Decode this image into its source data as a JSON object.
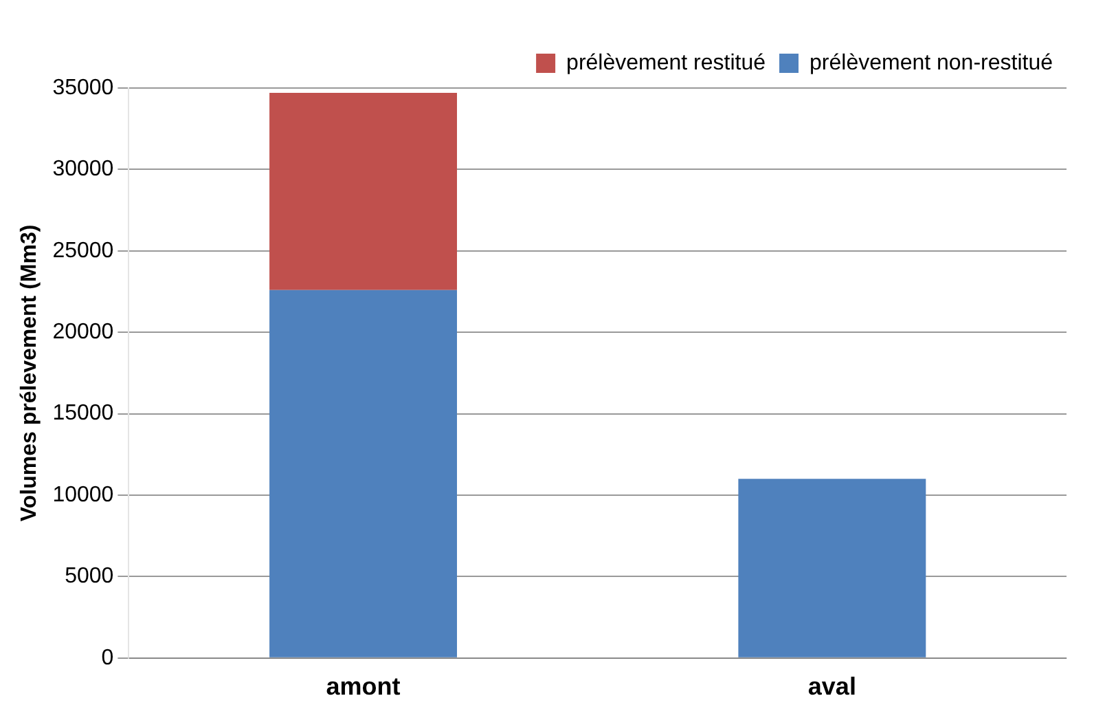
{
  "chart_data": {
    "type": "bar",
    "stacked": true,
    "ylabel": "Volumes prélevement (Mm3)",
    "categories": [
      "amont",
      "aval"
    ],
    "series": [
      {
        "name": "prélèvement non-restitué",
        "color": "#4f81bd",
        "values": [
          22600,
          11000
        ]
      },
      {
        "name": "prélèvement restitué",
        "color": "#c0504d",
        "values": [
          12100,
          null
        ]
      }
    ],
    "ylim": [
      0,
      35000
    ],
    "yticks": [
      0,
      5000,
      10000,
      15000,
      20000,
      25000,
      30000,
      35000
    ],
    "grid": "y",
    "legend": "top right"
  }
}
